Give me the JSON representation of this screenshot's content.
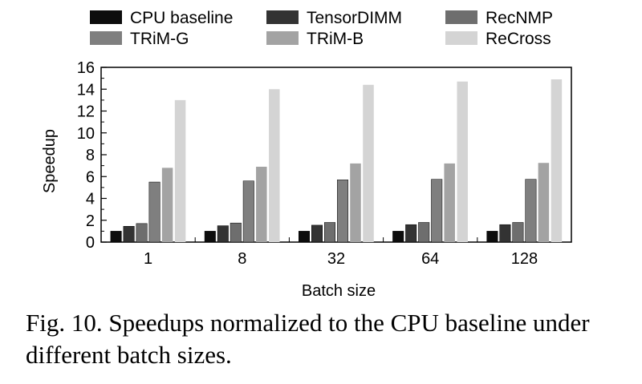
{
  "chart_data": {
    "type": "bar",
    "categories": [
      "1",
      "8",
      "32",
      "64",
      "128"
    ],
    "series": [
      {
        "name": "CPU baseline",
        "color": "#0d0d0d",
        "values": [
          1.0,
          1.0,
          1.0,
          1.0,
          1.0
        ]
      },
      {
        "name": "TensorDIMM",
        "color": "#333333",
        "values": [
          1.45,
          1.5,
          1.55,
          1.6,
          1.6
        ]
      },
      {
        "name": "RecNMP",
        "color": "#6e6e6e",
        "values": [
          1.7,
          1.75,
          1.8,
          1.8,
          1.8
        ]
      },
      {
        "name": "TRiM-G",
        "color": "#7f7f7f",
        "values": [
          5.5,
          5.6,
          5.7,
          5.75,
          5.75
        ]
      },
      {
        "name": "TRiM-B",
        "color": "#a3a3a3",
        "values": [
          6.8,
          6.9,
          7.2,
          7.2,
          7.25
        ]
      },
      {
        "name": "ReCross",
        "color": "#d4d4d4",
        "values": [
          13.0,
          14.0,
          14.4,
          14.7,
          14.9
        ]
      }
    ],
    "xlabel": "Batch size",
    "ylabel": "Speedup",
    "ylim": [
      0,
      16
    ],
    "yticks": [
      "0",
      "2",
      "4",
      "6",
      "8",
      "10",
      "12",
      "14",
      "16"
    ],
    "grid": false,
    "legend": "top"
  },
  "caption": "Fig. 10. Speedups normalized to the CPU baseline under different batch sizes."
}
